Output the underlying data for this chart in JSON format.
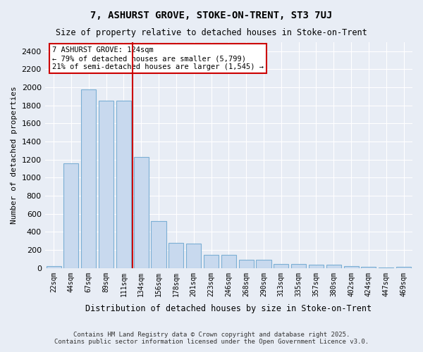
{
  "title": "7, ASHURST GROVE, STOKE-ON-TRENT, ST3 7UJ",
  "subtitle": "Size of property relative to detached houses in Stoke-on-Trent",
  "xlabel": "Distribution of detached houses by size in Stoke-on-Trent",
  "ylabel": "Number of detached properties",
  "bins": [
    "22sqm",
    "44sqm",
    "67sqm",
    "89sqm",
    "111sqm",
    "134sqm",
    "156sqm",
    "178sqm",
    "201sqm",
    "223sqm",
    "246sqm",
    "268sqm",
    "290sqm",
    "313sqm",
    "335sqm",
    "357sqm",
    "380sqm",
    "402sqm",
    "424sqm",
    "447sqm",
    "469sqm"
  ],
  "values": [
    25,
    1160,
    1975,
    1850,
    1850,
    1230,
    520,
    275,
    270,
    150,
    150,
    90,
    90,
    45,
    45,
    35,
    35,
    18,
    10,
    8,
    15
  ],
  "bar_color": "#c8d9ee",
  "bar_edge_color": "#7bafd4",
  "vline_x_index": 5,
  "vline_color": "#cc0000",
  "annotation_text": "7 ASHURST GROVE: 124sqm\n← 79% of detached houses are smaller (5,799)\n21% of semi-detached houses are larger (1,545) →",
  "annotation_box_color": "#ffffff",
  "annotation_box_edge": "#cc0000",
  "ylim": [
    0,
    2500
  ],
  "yticks": [
    0,
    200,
    400,
    600,
    800,
    1000,
    1200,
    1400,
    1600,
    1800,
    2000,
    2200,
    2400
  ],
  "bg_color": "#e8edf5",
  "grid_color": "#ffffff",
  "footer_line1": "Contains HM Land Registry data © Crown copyright and database right 2025.",
  "footer_line2": "Contains public sector information licensed under the Open Government Licence v3.0."
}
